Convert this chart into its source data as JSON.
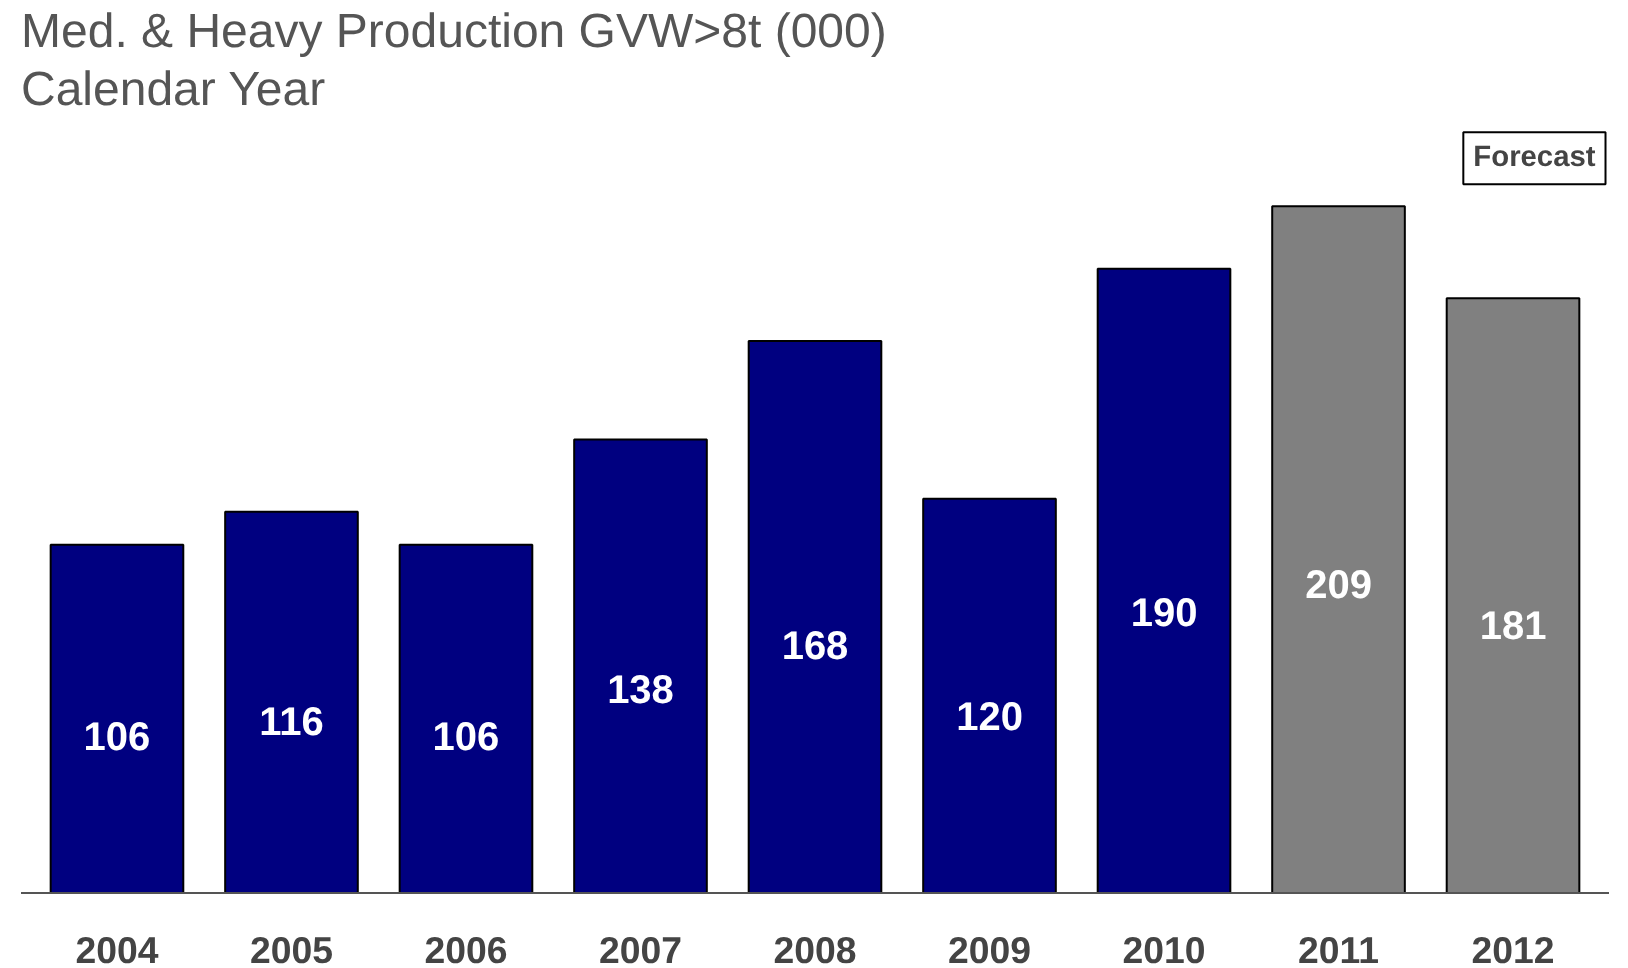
{
  "chart_data": {
    "type": "bar",
    "title": "Med. & Heavy Production GVW>8t (000)",
    "subtitle": "Calendar Year",
    "categories": [
      "2004",
      "2005",
      "2006",
      "2007",
      "2008",
      "2009",
      "2010",
      "2011",
      "2012"
    ],
    "values": [
      106,
      116,
      106,
      138,
      168,
      120,
      190,
      209,
      181
    ],
    "colors": [
      "#000080",
      "#000080",
      "#000080",
      "#000080",
      "#000080",
      "#000080",
      "#000080",
      "#808080",
      "#808080"
    ],
    "data_labels": true,
    "annotations": [
      "Forecast"
    ]
  }
}
